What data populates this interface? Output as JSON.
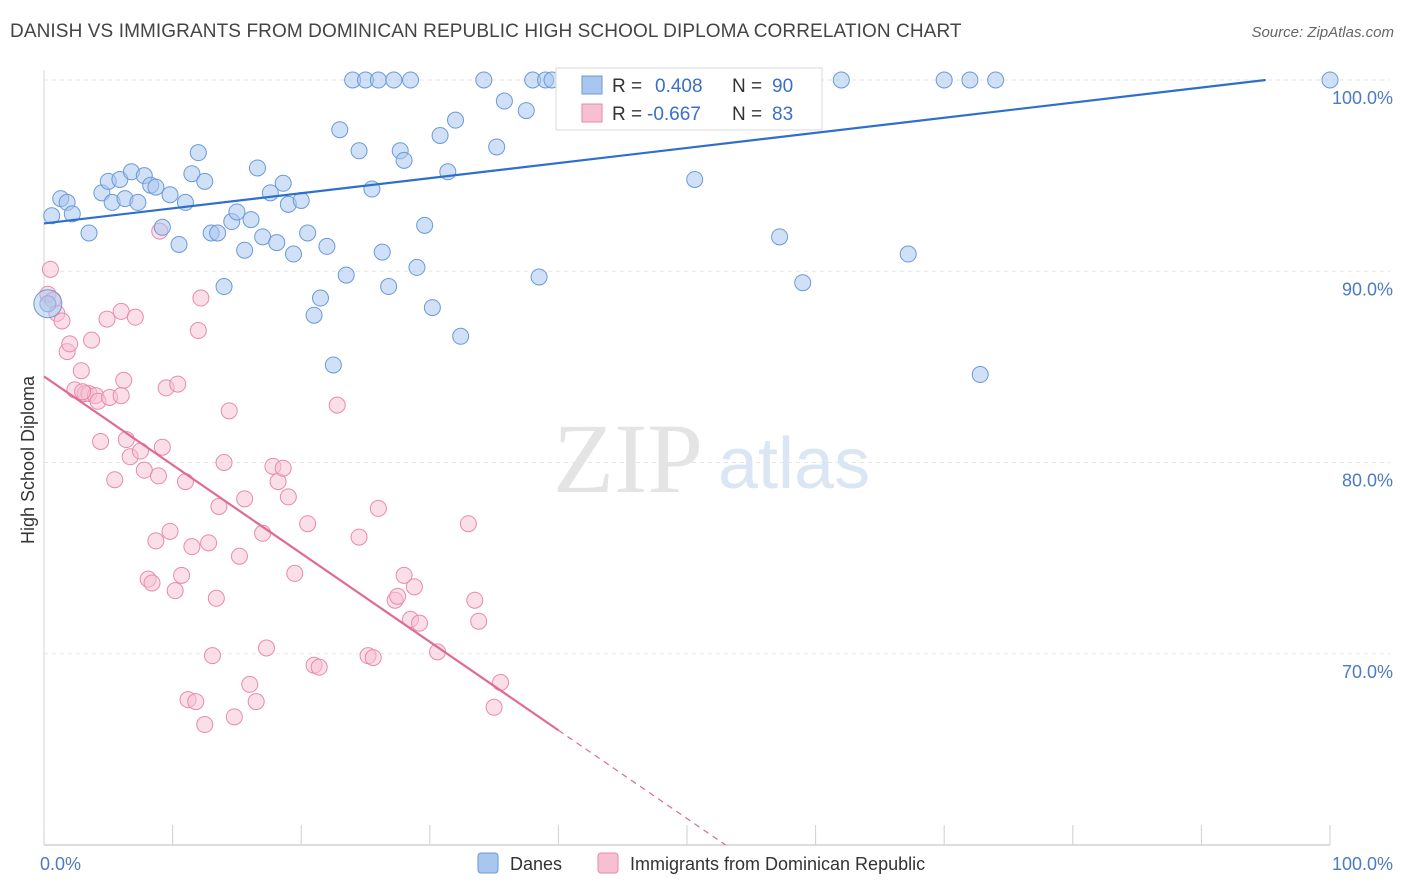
{
  "title": "DANISH VS IMMIGRANTS FROM DOMINICAN REPUBLIC HIGH SCHOOL DIPLOMA CORRELATION CHART",
  "source": "Source: ZipAtlas.com",
  "watermark": {
    "zip": "ZIP",
    "atlas": "atlas"
  },
  "colors": {
    "danes_fill": "#a9c6ee",
    "danes_stroke": "#6a9ad8",
    "danes_line": "#2f6fcc",
    "dom_fill": "#f7c0d2",
    "dom_stroke": "#e88aab",
    "dom_line": "#e06a95",
    "grid": "#e5e5e5",
    "tick_text": "#4b7bc4"
  },
  "stats_box": {
    "rows": [
      {
        "r_label": "R =",
        "r_value": "0.408",
        "n_label": "N =",
        "n_value": "90"
      },
      {
        "r_label": "R =",
        "r_value": "-0.667",
        "n_label": "N =",
        "n_value": "83"
      }
    ]
  },
  "legend": {
    "items": [
      "Danes",
      "Immigrants from Dominican Republic"
    ]
  },
  "chart_data": {
    "type": "scatter",
    "ylabel": "High School Diploma",
    "xlim": [
      0,
      100
    ],
    "ylim": [
      60,
      100
    ],
    "x_tick_labels": [
      "0.0%",
      "100.0%"
    ],
    "y_ticks": [
      {
        "value": 100,
        "label": "100.0%"
      },
      {
        "value": 90,
        "label": "90.0%"
      },
      {
        "value": 80,
        "label": "80.0%"
      },
      {
        "value": 70,
        "label": "70.0%"
      }
    ],
    "grid": true,
    "legend_position": "bottom-center",
    "series": [
      {
        "name": "Danes",
        "trend": {
          "x0": 0,
          "y0": 92.5,
          "x1": 95,
          "y1": 100
        },
        "points": [
          [
            0.3,
            88.3
          ],
          [
            0.6,
            92.9
          ],
          [
            1.3,
            93.8
          ],
          [
            1.8,
            93.6
          ],
          [
            2.2,
            93.0
          ],
          [
            3.5,
            92.0
          ],
          [
            4.5,
            94.1
          ],
          [
            5.0,
            94.7
          ],
          [
            5.3,
            93.6
          ],
          [
            5.9,
            94.8
          ],
          [
            6.3,
            93.8
          ],
          [
            6.8,
            95.2
          ],
          [
            7.3,
            93.6
          ],
          [
            7.8,
            95.0
          ],
          [
            8.3,
            94.5
          ],
          [
            8.7,
            94.4
          ],
          [
            9.2,
            92.3
          ],
          [
            9.8,
            94.0
          ],
          [
            10.5,
            91.4
          ],
          [
            11.0,
            93.6
          ],
          [
            11.5,
            95.1
          ],
          [
            12.0,
            96.2
          ],
          [
            12.5,
            94.7
          ],
          [
            13.0,
            92.0
          ],
          [
            13.5,
            92.0
          ],
          [
            14.0,
            89.2
          ],
          [
            14.6,
            92.6
          ],
          [
            15.0,
            93.1
          ],
          [
            15.6,
            91.1
          ],
          [
            16.1,
            92.7
          ],
          [
            16.6,
            95.4
          ],
          [
            17.0,
            91.8
          ],
          [
            17.6,
            94.1
          ],
          [
            18.1,
            91.5
          ],
          [
            18.6,
            94.6
          ],
          [
            19.0,
            93.5
          ],
          [
            19.4,
            90.9
          ],
          [
            20.0,
            93.7
          ],
          [
            20.5,
            92.0
          ],
          [
            21.0,
            87.7
          ],
          [
            21.5,
            88.6
          ],
          [
            22.0,
            91.3
          ],
          [
            22.5,
            85.1
          ],
          [
            23.0,
            97.4
          ],
          [
            23.5,
            89.8
          ],
          [
            24.0,
            100.0
          ],
          [
            24.5,
            96.3
          ],
          [
            25.0,
            100.0
          ],
          [
            25.5,
            94.3
          ],
          [
            26.0,
            100.0
          ],
          [
            26.3,
            91.0
          ],
          [
            26.8,
            89.2
          ],
          [
            27.2,
            100.0
          ],
          [
            27.7,
            96.3
          ],
          [
            28.0,
            95.8
          ],
          [
            28.5,
            100.0
          ],
          [
            29.0,
            90.2
          ],
          [
            29.6,
            92.4
          ],
          [
            30.2,
            88.1
          ],
          [
            30.8,
            97.1
          ],
          [
            31.4,
            95.2
          ],
          [
            32.0,
            97.9
          ],
          [
            32.4,
            86.6
          ],
          [
            34.2,
            100.0
          ],
          [
            35.2,
            96.5
          ],
          [
            35.8,
            98.9
          ],
          [
            37.5,
            98.4
          ],
          [
            38.0,
            100.0
          ],
          [
            38.5,
            89.7
          ],
          [
            39.0,
            100.0
          ],
          [
            39.5,
            100.0
          ],
          [
            41.0,
            100.0
          ],
          [
            44.0,
            100.0
          ],
          [
            45.0,
            100.0
          ],
          [
            46.0,
            100.0
          ],
          [
            47.0,
            100.0
          ],
          [
            48.0,
            100.0
          ],
          [
            49.0,
            100.0
          ],
          [
            50.0,
            100.0
          ],
          [
            50.6,
            94.8
          ],
          [
            55.0,
            100.0
          ],
          [
            57.2,
            91.8
          ],
          [
            59.0,
            89.4
          ],
          [
            62.0,
            100.0
          ],
          [
            67.2,
            90.9
          ],
          [
            70.0,
            100.0
          ],
          [
            72.0,
            100.0
          ],
          [
            72.8,
            84.6
          ],
          [
            74.0,
            100.0
          ],
          [
            100.0,
            100.0
          ]
        ]
      },
      {
        "name": "Immigrants from Dominican Republic",
        "trend": {
          "x0": 0,
          "y0": 84.5,
          "x1": 40,
          "y1": 66.0,
          "dash_to_x": 53,
          "dash_to_y": 60
        },
        "points": [
          [
            0.3,
            88.8
          ],
          [
            0.5,
            90.1
          ],
          [
            0.7,
            88.5
          ],
          [
            1.0,
            87.8
          ],
          [
            1.4,
            87.4
          ],
          [
            1.8,
            85.8
          ],
          [
            2.0,
            86.2
          ],
          [
            2.4,
            83.8
          ],
          [
            2.9,
            84.8
          ],
          [
            3.2,
            83.6
          ],
          [
            3.5,
            83.6
          ],
          [
            3.7,
            86.4
          ],
          [
            4.0,
            83.5
          ],
          [
            4.2,
            83.2
          ],
          [
            4.4,
            81.1
          ],
          [
            4.9,
            87.5
          ],
          [
            5.1,
            83.4
          ],
          [
            5.5,
            79.1
          ],
          [
            6.0,
            87.9
          ],
          [
            6.2,
            84.3
          ],
          [
            6.4,
            81.2
          ],
          [
            6.7,
            80.3
          ],
          [
            7.1,
            87.6
          ],
          [
            7.5,
            80.6
          ],
          [
            7.8,
            79.6
          ],
          [
            8.1,
            73.9
          ],
          [
            8.4,
            73.7
          ],
          [
            8.7,
            75.9
          ],
          [
            8.9,
            79.3
          ],
          [
            9.2,
            80.8
          ],
          [
            9.5,
            83.9
          ],
          [
            9.8,
            76.4
          ],
          [
            10.2,
            73.3
          ],
          [
            10.4,
            84.1
          ],
          [
            10.7,
            74.1
          ],
          [
            11.0,
            79.0
          ],
          [
            11.2,
            67.6
          ],
          [
            11.5,
            75.6
          ],
          [
            11.8,
            67.5
          ],
          [
            12.0,
            86.9
          ],
          [
            12.2,
            88.6
          ],
          [
            12.5,
            66.3
          ],
          [
            12.8,
            75.8
          ],
          [
            13.1,
            69.9
          ],
          [
            13.4,
            72.9
          ],
          [
            13.6,
            77.7
          ],
          [
            14.0,
            80.0
          ],
          [
            14.4,
            82.7
          ],
          [
            14.8,
            66.7
          ],
          [
            15.2,
            75.1
          ],
          [
            15.6,
            78.1
          ],
          [
            16.0,
            68.4
          ],
          [
            16.5,
            67.5
          ],
          [
            17.0,
            76.3
          ],
          [
            17.3,
            70.3
          ],
          [
            17.8,
            79.8
          ],
          [
            18.2,
            79.0
          ],
          [
            18.6,
            79.7
          ],
          [
            19.0,
            78.2
          ],
          [
            19.5,
            74.2
          ],
          [
            20.5,
            76.8
          ],
          [
            21.0,
            69.4
          ],
          [
            21.4,
            69.3
          ],
          [
            22.8,
            83.0
          ],
          [
            24.5,
            76.1
          ],
          [
            25.2,
            69.9
          ],
          [
            25.6,
            69.8
          ],
          [
            26.0,
            77.6
          ],
          [
            27.3,
            72.8
          ],
          [
            28.0,
            74.1
          ],
          [
            28.5,
            71.8
          ],
          [
            28.8,
            73.5
          ],
          [
            29.2,
            71.6
          ],
          [
            30.6,
            70.1
          ],
          [
            33.0,
            76.8
          ],
          [
            33.5,
            72.8
          ],
          [
            33.8,
            71.7
          ],
          [
            35.0,
            67.2
          ],
          [
            35.5,
            68.5
          ],
          [
            27.5,
            73.0
          ],
          [
            9.0,
            92.1
          ],
          [
            6.0,
            83.5
          ],
          [
            3.0,
            83.7
          ]
        ]
      }
    ]
  }
}
